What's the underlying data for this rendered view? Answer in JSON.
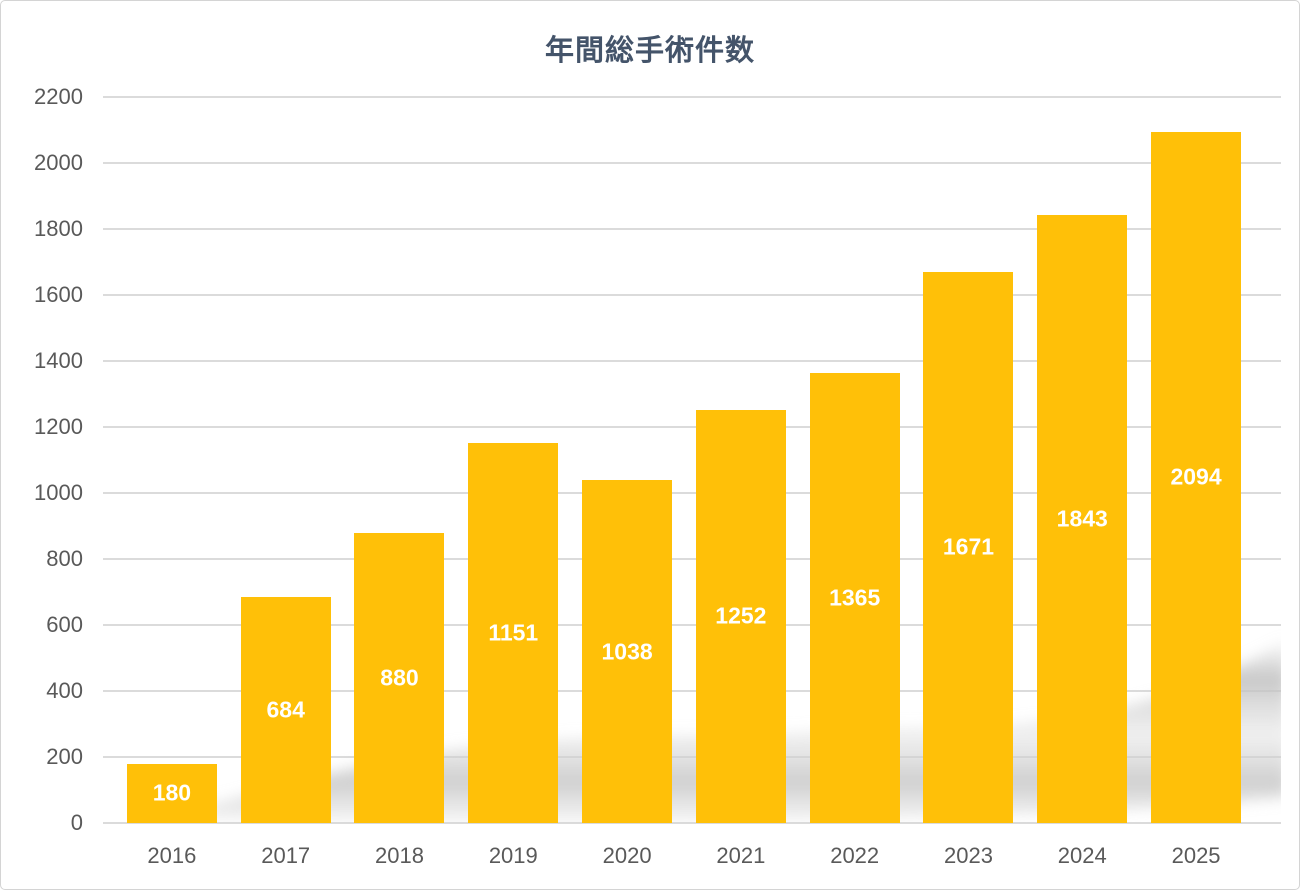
{
  "chart_data": {
    "type": "bar",
    "title": "年間総手術件数",
    "categories": [
      "2016",
      "2017",
      "2018",
      "2019",
      "2020",
      "2021",
      "2022",
      "2023",
      "2024",
      "2025"
    ],
    "values": [
      180,
      684,
      880,
      1151,
      1038,
      1252,
      1365,
      1671,
      1843,
      2094
    ],
    "xlabel": "",
    "ylabel": "",
    "ylim": [
      0,
      2200
    ],
    "yticks": [
      0,
      200,
      400,
      600,
      800,
      1000,
      1200,
      1400,
      1600,
      1800,
      2000,
      2200
    ],
    "grid": true,
    "legend": false,
    "value_labels_position": "inside-center",
    "colors": {
      "bar": "#FFC008",
      "title": "#44546A",
      "axis_text": "#595959",
      "gridline": "#DBDBDB",
      "value_label": "#FFFFFF",
      "background": "#FFFFFF",
      "border": "#D4D4D4",
      "shadow": "#C6C6C6"
    }
  }
}
